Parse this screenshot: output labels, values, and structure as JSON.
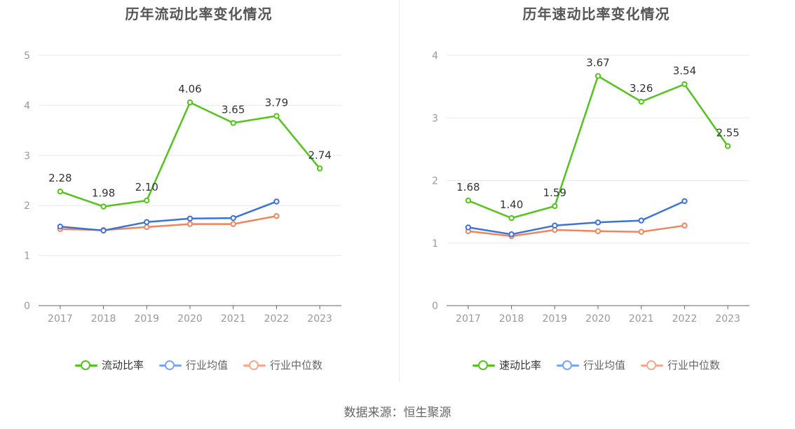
{
  "source": "数据来源：恒生聚源",
  "charts": [
    {
      "title": "历年流动比率变化情况",
      "legend": [
        {
          "label": "流动比率",
          "color": "#52c41a"
        },
        {
          "label": "行业均值",
          "color": "#7aa5f5"
        },
        {
          "label": "行业中位数",
          "color": "#f7a98c"
        }
      ]
    },
    {
      "title": "历年速动比率变化情况",
      "legend": [
        {
          "label": "速动比率",
          "color": "#52c41a"
        },
        {
          "label": "行业均值",
          "color": "#7aa5f5"
        },
        {
          "label": "行业中位数",
          "color": "#f7a98c"
        }
      ]
    }
  ],
  "chart_data": [
    {
      "type": "line",
      "title": "历年流动比率变化情况",
      "categories": [
        "2017",
        "2018",
        "2019",
        "2020",
        "2021",
        "2022",
        "2023"
      ],
      "ylim": [
        0,
        5
      ],
      "yticks": [
        "0",
        "1",
        "2",
        "3",
        "4",
        "5"
      ],
      "grid": true,
      "legend_position": "bottom",
      "series": [
        {
          "name": "流动比率",
          "color": "#52c41a",
          "values": [
            2.28,
            1.98,
            2.1,
            4.06,
            3.65,
            3.79,
            2.74
          ],
          "labels": [
            "2.28",
            "1.98",
            "2.10",
            "4.06",
            "3.65",
            "3.79",
            "2.74"
          ]
        },
        {
          "name": "行业均值",
          "color": "#3b73d9",
          "values": [
            1.58,
            1.5,
            1.67,
            1.74,
            1.75,
            2.08,
            null
          ]
        },
        {
          "name": "行业中位数",
          "color": "#f0845a",
          "values": [
            1.53,
            1.51,
            1.57,
            1.63,
            1.63,
            1.79,
            null
          ]
        }
      ]
    },
    {
      "type": "line",
      "title": "历年速动比率变化情况",
      "categories": [
        "2017",
        "2018",
        "2019",
        "2020",
        "2021",
        "2022",
        "2023"
      ],
      "ylim": [
        0,
        4
      ],
      "yticks": [
        "0",
        "1",
        "2",
        "3",
        "4"
      ],
      "grid": true,
      "legend_position": "bottom",
      "series": [
        {
          "name": "速动比率",
          "color": "#52c41a",
          "values": [
            1.68,
            1.4,
            1.59,
            3.67,
            3.26,
            3.54,
            2.55
          ],
          "labels": [
            "1.68",
            "1.40",
            "1.59",
            "3.67",
            "3.26",
            "3.54",
            "2.55"
          ]
        },
        {
          "name": "行业均值",
          "color": "#3b73d9",
          "values": [
            1.25,
            1.14,
            1.28,
            1.33,
            1.36,
            1.67,
            null
          ]
        },
        {
          "name": "行业中位数",
          "color": "#f0845a",
          "values": [
            1.19,
            1.11,
            1.21,
            1.19,
            1.18,
            1.28,
            null
          ]
        }
      ]
    }
  ]
}
